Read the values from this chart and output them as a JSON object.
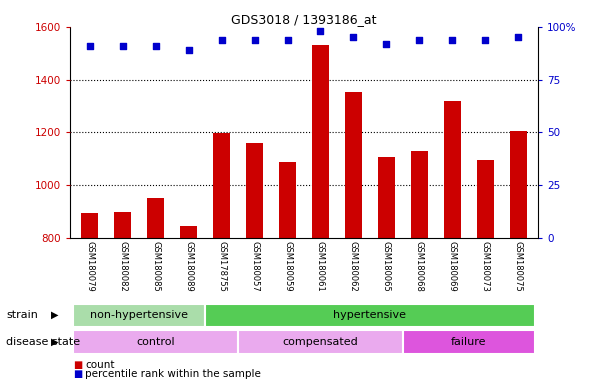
{
  "title": "GDS3018 / 1393186_at",
  "samples": [
    "GSM180079",
    "GSM180082",
    "GSM180085",
    "GSM180089",
    "GSM178755",
    "GSM180057",
    "GSM180059",
    "GSM180061",
    "GSM180062",
    "GSM180065",
    "GSM180068",
    "GSM180069",
    "GSM180073",
    "GSM180075"
  ],
  "counts": [
    895,
    897,
    950,
    847,
    1198,
    1162,
    1090,
    1530,
    1355,
    1107,
    1130,
    1320,
    1097,
    1207
  ],
  "percentiles": [
    91,
    91,
    91,
    89,
    94,
    94,
    94,
    98,
    95,
    92,
    94,
    94,
    94,
    95
  ],
  "ylim_left": [
    800,
    1600
  ],
  "ylim_right": [
    0,
    100
  ],
  "yticks_left": [
    800,
    1000,
    1200,
    1400,
    1600
  ],
  "yticks_right": [
    0,
    25,
    50,
    75,
    100
  ],
  "bar_color": "#cc0000",
  "scatter_color": "#0000cc",
  "strain_non_hyp_color": "#aaddaa",
  "strain_hyp_color": "#55cc55",
  "disease_control_color": "#eaaaee",
  "disease_comp_color": "#eaaaee",
  "disease_fail_color": "#dd55dd",
  "tick_bg_color": "#cccccc",
  "strain_label": "strain",
  "disease_label": "disease state"
}
